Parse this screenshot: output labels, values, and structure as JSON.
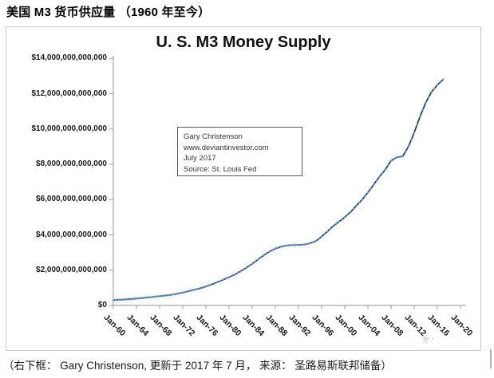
{
  "page": {
    "title": "美国 M3 货币供应量 （1960 年至今）",
    "caption": "（右下框： Gary Christenson, 更新于 2017 年 7 月， 来源： 圣路易斯联邦储备）"
  },
  "chart_data": {
    "type": "line",
    "title": "U. S. M3 Money Supply",
    "xlabel": "",
    "ylabel": "",
    "grid": "off",
    "legend": "none",
    "x_range_years": [
      1960,
      2020
    ],
    "ylim_trillions_usd": [
      0,
      14
    ],
    "x_tick_labels": [
      "Jan-60",
      "Jan-64",
      "Jan-68",
      "Jan-72",
      "Jan-76",
      "Jan-80",
      "Jan-84",
      "Jan-88",
      "Jan-92",
      "Jan-96",
      "Jan-00",
      "Jan-04",
      "Jan-08",
      "Jan-12",
      "Jan-16",
      "Jan-20"
    ],
    "y_tick_labels": [
      "$0",
      "$2,000,000,000,000",
      "$4,000,000,000,000",
      "$6,000,000,000,000",
      "$8,000,000,000,000",
      "$10,000,000,000,000",
      "$12,000,000,000,000",
      "$14,000,000,000,000"
    ],
    "annotation_box": {
      "lines": [
        "Gary Christenson",
        "www.deviantinvestor.com",
        "July 2017",
        "Source: St. Louis Fed"
      ]
    },
    "series": [
      {
        "name": "U.S. M3 Money Supply",
        "line_color": "#17365d",
        "marker_color": "#6d96c8",
        "years": [
          1960,
          1961,
          1962,
          1963,
          1964,
          1965,
          1966,
          1967,
          1968,
          1969,
          1970,
          1971,
          1972,
          1973,
          1974,
          1975,
          1976,
          1977,
          1978,
          1979,
          1980,
          1981,
          1982,
          1983,
          1984,
          1985,
          1986,
          1987,
          1988,
          1989,
          1990,
          1991,
          1992,
          1993,
          1994,
          1995,
          1996,
          1997,
          1998,
          1999,
          2000,
          2001,
          2002,
          2003,
          2004,
          2005,
          2006,
          2007,
          2008,
          2009,
          2010,
          2011,
          2012,
          2013,
          2014,
          2015,
          2016,
          2017
        ],
        "values_trillions_usd": [
          0.3,
          0.32,
          0.34,
          0.36,
          0.39,
          0.42,
          0.45,
          0.49,
          0.53,
          0.56,
          0.6,
          0.66,
          0.73,
          0.81,
          0.89,
          0.97,
          1.07,
          1.19,
          1.32,
          1.46,
          1.6,
          1.76,
          1.94,
          2.14,
          2.36,
          2.6,
          2.85,
          3.05,
          3.22,
          3.33,
          3.4,
          3.42,
          3.43,
          3.45,
          3.52,
          3.65,
          3.9,
          4.2,
          4.5,
          4.75,
          5.0,
          5.3,
          5.65,
          6.0,
          6.4,
          6.85,
          7.3,
          7.7,
          8.2,
          8.4,
          8.45,
          9.0,
          9.8,
          10.7,
          11.5,
          12.1,
          12.5,
          12.8
        ]
      }
    ]
  },
  "watermark": {
    "glyph": "✳·"
  }
}
